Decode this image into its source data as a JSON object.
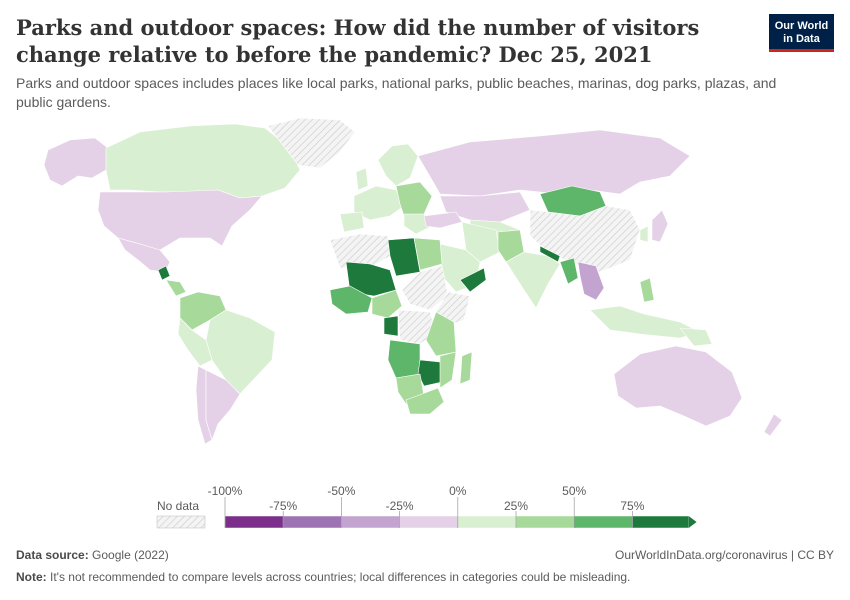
{
  "title": "Parks and outdoor spaces: How did the number of visitors change relative to before the pandemic? Dec 25, 2021",
  "subtitle": "Parks and outdoor spaces includes places like local parks, national parks, public beaches, marinas, dog parks, plazas, and public gardens.",
  "logo": {
    "line1": "Our World",
    "line2": "in Data"
  },
  "legend": {
    "no_data_label": "No data",
    "tick_labels": [
      "-100%",
      "-75%",
      "-50%",
      "-25%",
      "0%",
      "25%",
      "50%",
      "75%"
    ],
    "bin_colors": [
      "#7b2e8a",
      "#9e73b3",
      "#c3a3cf",
      "#e5d1e7",
      "#d9efd2",
      "#a7da9a",
      "#5db66a",
      "#1d7a3c"
    ]
  },
  "footer": {
    "source_label": "Data source:",
    "source_value": "Google (2022)",
    "url": "OurWorldInData.org/coronavirus | CC BY",
    "note_label": "Note:",
    "note_value": "It's not recommended to compare levels across countries; local differences in categories could be misleading."
  },
  "colors": {
    "strong_decrease": "#7b2e8a",
    "decrease": "#9e73b3",
    "mild_decrease": "#c3a3cf",
    "slight_decrease": "#e5d1e7",
    "slight_increase": "#d9efd2",
    "increase": "#a7da9a",
    "large_increase": "#5db66a",
    "strong_increase": "#1d7a3c",
    "no_data": "#eeeeee"
  }
}
